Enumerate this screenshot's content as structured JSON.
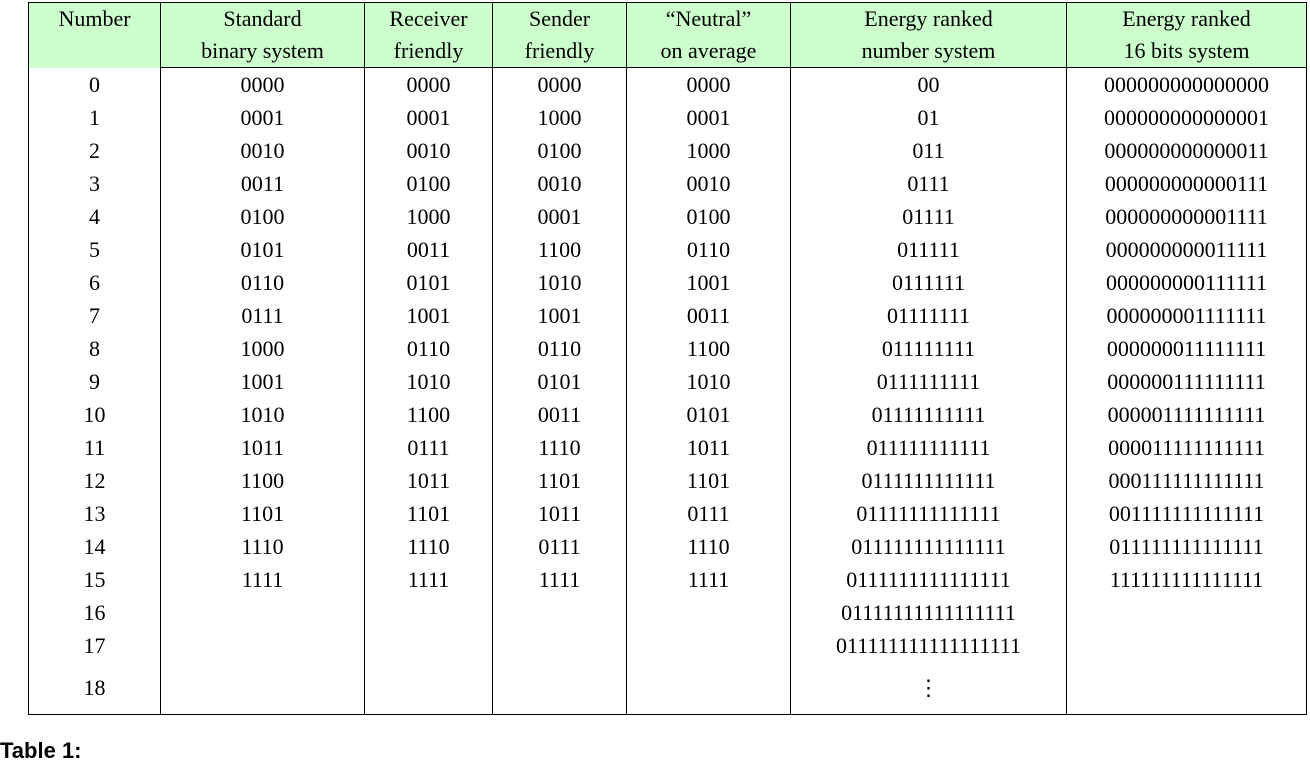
{
  "table": {
    "header": [
      [
        "Number"
      ],
      [
        "Standard",
        "binary system"
      ],
      [
        "Receiver",
        "friendly"
      ],
      [
        "Sender",
        "friendly"
      ],
      [
        "“Neutral”",
        "on average"
      ],
      [
        "Energy ranked",
        "number system"
      ],
      [
        "Energy ranked",
        "16 bits system"
      ]
    ],
    "rows": [
      [
        "0",
        "0000",
        "0000",
        "0000",
        "0000",
        "00",
        "000000000000000"
      ],
      [
        "1",
        "0001",
        "0001",
        "1000",
        "0001",
        "01",
        "000000000000001"
      ],
      [
        "2",
        "0010",
        "0010",
        "0100",
        "1000",
        "011",
        "000000000000011"
      ],
      [
        "3",
        "0011",
        "0100",
        "0010",
        "0010",
        "0111",
        "000000000000111"
      ],
      [
        "4",
        "0100",
        "1000",
        "0001",
        "0100",
        "01111",
        "000000000001111"
      ],
      [
        "5",
        "0101",
        "0011",
        "1100",
        "0110",
        "011111",
        "000000000011111"
      ],
      [
        "6",
        "0110",
        "0101",
        "1010",
        "1001",
        "0111111",
        "000000000111111"
      ],
      [
        "7",
        "0111",
        "1001",
        "1001",
        "0011",
        "01111111",
        "000000001111111"
      ],
      [
        "8",
        "1000",
        "0110",
        "0110",
        "1100",
        "011111111",
        "000000011111111"
      ],
      [
        "9",
        "1001",
        "1010",
        "0101",
        "1010",
        "0111111111",
        "000000111111111"
      ],
      [
        "10",
        "1010",
        "1100",
        "0011",
        "0101",
        "01111111111",
        "000001111111111"
      ],
      [
        "11",
        "1011",
        "0111",
        "1110",
        "1011",
        "011111111111",
        "000011111111111"
      ],
      [
        "12",
        "1100",
        "1011",
        "1101",
        "1101",
        "0111111111111",
        "000111111111111"
      ],
      [
        "13",
        "1101",
        "1101",
        "1011",
        "0111",
        "01111111111111",
        "001111111111111"
      ],
      [
        "14",
        "1110",
        "1110",
        "0111",
        "1110",
        "011111111111111",
        "011111111111111"
      ],
      [
        "15",
        "1111",
        "1111",
        "1111",
        "1111",
        "0111111111111111",
        "111111111111111"
      ],
      [
        "16",
        null,
        null,
        null,
        null,
        "01111111111111111",
        null
      ],
      [
        "17",
        null,
        null,
        null,
        null,
        "011111111111111111",
        null
      ],
      [
        "18",
        null,
        null,
        null,
        null,
        "⋮",
        null
      ]
    ],
    "caption_label": "Table 1:"
  }
}
